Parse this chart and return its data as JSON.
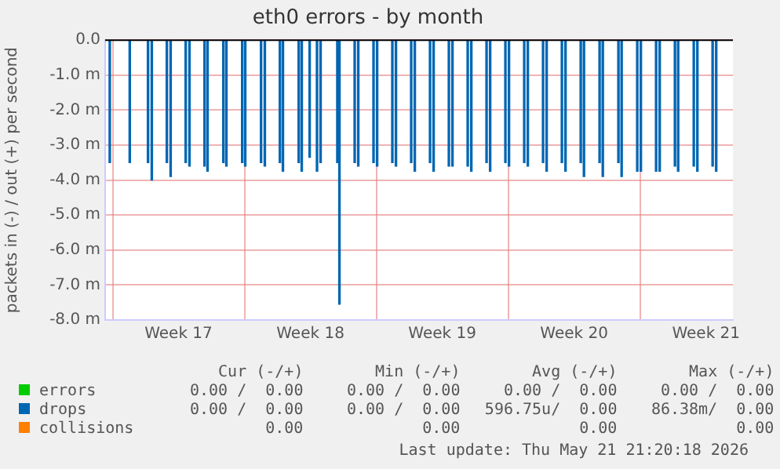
{
  "chart_data": {
    "type": "bar",
    "title": "eth0 errors - by month",
    "ylabel": "packets in (-) / out (+) per second",
    "xlim": [
      "2026-04-19T14:30",
      "2026-05-22T22:15"
    ],
    "xticks": [
      {
        "value": "2026-04-20",
        "label": null
      },
      {
        "value": "2026-04-23T12:00",
        "label": "Week 17"
      },
      {
        "value": "2026-04-27",
        "label": null
      },
      {
        "value": "2026-04-30T12:00",
        "label": "Week 18"
      },
      {
        "value": "2026-05-04",
        "label": null
      },
      {
        "value": "2026-05-07T12:00",
        "label": "Week 19"
      },
      {
        "value": "2026-05-11",
        "label": null
      },
      {
        "value": "2026-05-14T12:00",
        "label": "Week 20"
      },
      {
        "value": "2026-05-18",
        "label": null
      },
      {
        "value": "2026-05-21T12:00",
        "label": "Week 21"
      }
    ],
    "ylim": [
      -8,
      0
    ],
    "yticks": [
      {
        "value": -8,
        "label": "-8.0 m"
      },
      {
        "value": -7,
        "label": "-7.0 m"
      },
      {
        "value": -6,
        "label": "-6.0 m"
      },
      {
        "value": -5,
        "label": "-5.0 m"
      },
      {
        "value": -4,
        "label": "-4.0 m"
      },
      {
        "value": -3,
        "label": "-3.0 m"
      },
      {
        "value": -2,
        "label": "-2.0 m"
      },
      {
        "value": -1,
        "label": "-1.0 m"
      },
      {
        "value": 0,
        "label": "0.0"
      }
    ],
    "grid": true,
    "legend": "bottom",
    "series": [
      {
        "name": "errors",
        "color": "#00cc00"
      },
      {
        "name": "drops",
        "color": "#0066b3",
        "x": [
          "2026-04-19T20:24",
          "2026-04-20T21:50",
          "2026-04-21T21:07",
          "2026-04-22T01:55",
          "2026-04-22T21:07",
          "2026-04-23T01:55",
          "2026-04-23T21:07",
          "2026-04-24T01:55",
          "2026-04-24T21:07",
          "2026-04-25T00:58",
          "2026-04-25T21:07",
          "2026-04-26T00:58",
          "2026-04-26T21:07",
          "2026-04-27T00:58",
          "2026-04-27T21:07",
          "2026-04-28T01:55",
          "2026-04-28T21:07",
          "2026-04-29T00:58",
          "2026-04-29T21:07",
          "2026-04-30T00:58",
          "2026-04-30T11:02",
          "2026-04-30T20:24",
          "2026-05-01T00:58",
          "2026-05-01T22:19",
          "2026-05-02T00:58",
          "2026-05-02T20:24",
          "2026-05-03T00:58",
          "2026-05-03T20:24",
          "2026-05-04T00:58",
          "2026-05-04T20:24",
          "2026-05-05T00:58",
          "2026-05-05T20:24",
          "2026-05-06T00:58",
          "2026-05-06T20:24",
          "2026-05-07T00:58",
          "2026-05-07T20:24",
          "2026-05-08T00:58",
          "2026-05-08T20:24",
          "2026-05-09T00:58",
          "2026-05-09T20:24",
          "2026-05-10T00:58",
          "2026-05-10T20:24",
          "2026-05-11T00:58",
          "2026-05-11T20:24",
          "2026-05-12T00:58",
          "2026-05-12T20:24",
          "2026-05-13T00:58",
          "2026-05-13T20:24",
          "2026-05-14T00:58",
          "2026-05-14T20:24",
          "2026-05-15T00:29",
          "2026-05-15T20:24",
          "2026-05-16T00:29",
          "2026-05-16T20:24",
          "2026-05-17T00:29",
          "2026-05-17T20:24",
          "2026-05-18T00:58",
          "2026-05-18T20:24",
          "2026-05-19T00:58",
          "2026-05-19T20:24",
          "2026-05-20T00:29",
          "2026-05-20T20:24",
          "2026-05-21T00:58",
          "2026-05-21T20:24",
          "2026-05-22T00:58"
        ],
        "values": [
          -3.5,
          -3.5,
          -3.5,
          -4.0,
          -3.5,
          -3.9,
          -3.5,
          -3.6,
          -3.6,
          -3.75,
          -3.5,
          -3.6,
          -3.5,
          -3.6,
          -3.5,
          -3.6,
          -3.5,
          -3.75,
          -3.5,
          -3.75,
          -3.35,
          -3.75,
          -3.5,
          -3.5,
          -7.55,
          -3.5,
          -3.6,
          -3.5,
          -3.6,
          -3.5,
          -3.6,
          -3.5,
          -3.75,
          -3.5,
          -3.75,
          -3.6,
          -3.6,
          -3.6,
          -3.75,
          -3.5,
          -3.75,
          -3.5,
          -3.6,
          -3.5,
          -3.6,
          -3.5,
          -3.75,
          -3.5,
          -3.75,
          -3.5,
          -3.9,
          -3.5,
          -3.9,
          -3.5,
          -3.9,
          -3.75,
          -3.75,
          -3.75,
          -3.75,
          -3.6,
          -3.75,
          -3.6,
          -3.75,
          -3.6,
          -3.75
        ]
      },
      {
        "name": "collisions",
        "color": "#ff8000"
      }
    ],
    "annotations": [
      "Cur (-/+)",
      "Min (-/+)",
      "Avg (-/+)",
      "Max (-/+)",
      "0.00 /  0.00",
      "0.00 /  0.00",
      "0.00 /  0.00",
      "0.00 /  0.00",
      "0.00 /  0.00",
      "0.00 /  0.00",
      "596.75u/  0.00",
      "86.38m/  0.00",
      "0.00",
      "0.00",
      "0.00",
      "0.00",
      "Last update: Thu May 21 21:20:18 2026"
    ]
  }
}
